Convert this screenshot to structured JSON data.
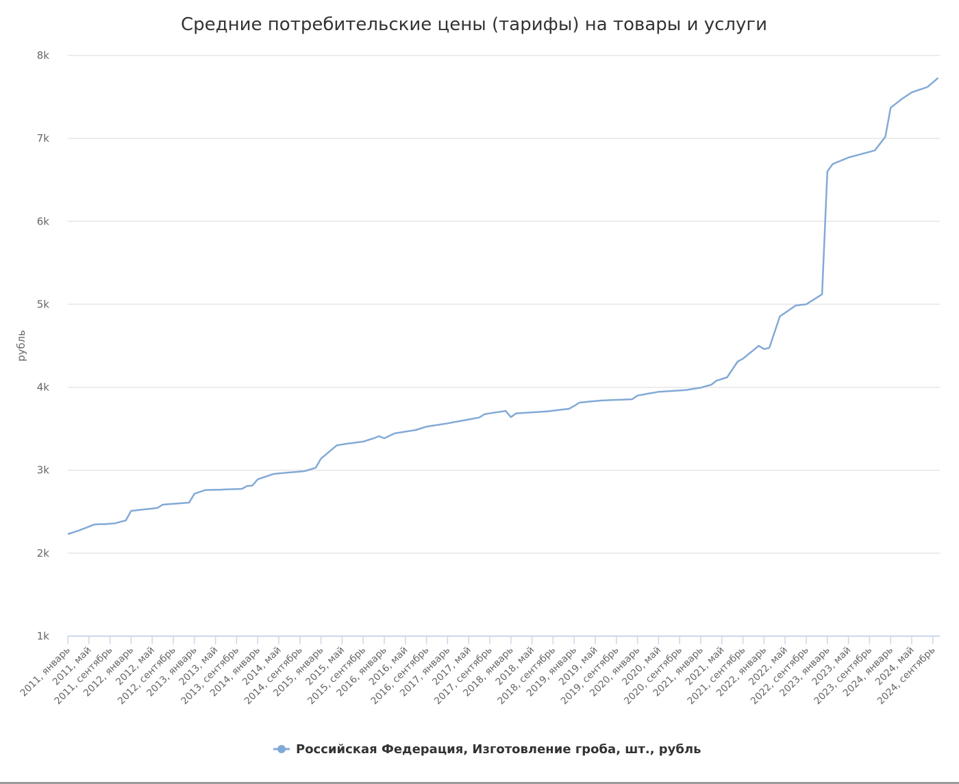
{
  "chart_data": {
    "type": "line",
    "title": "Средние потребительские цены (тарифы) на товары и услуги",
    "ylabel": "рубль",
    "xlabel": "",
    "ylim": [
      1000,
      8000
    ],
    "yticks": [
      1000,
      2000,
      3000,
      4000,
      5000,
      6000,
      7000,
      8000
    ],
    "ytick_labels": [
      "1k",
      "2k",
      "3k",
      "4k",
      "5k",
      "6k",
      "7k",
      "8k"
    ],
    "grid": true,
    "legend_position": "bottom",
    "line_color": "#82a9d6",
    "x_tick_labels": [
      "2011, январь",
      "2011, май",
      "2011, сентябрь",
      "2012, январь",
      "2012, май",
      "2012, сентябрь",
      "2013, январь",
      "2013, май",
      "2013, сентябрь",
      "2014, январь",
      "2014, май",
      "2014, сентябрь",
      "2015, январь",
      "2015, май",
      "2015, сентябрь",
      "2016, январь",
      "2016, май",
      "2016, сентябрь",
      "2017, январь",
      "2017, май",
      "2017, сентябрь",
      "2018, январь",
      "2018, май",
      "2018, сентябрь",
      "2019, январь",
      "2019, май",
      "2019, сентябрь",
      "2020, январь",
      "2020, май",
      "2020, сентябрь",
      "2021, январь",
      "2021, май",
      "2021, сентябрь",
      "2022, январь",
      "2022, май",
      "2022, сентябрь",
      "2023, январь",
      "2023, май",
      "2023, сентябрь",
      "2024, январь",
      "2024, май",
      "2024, сентябрь"
    ],
    "x_range": [
      "2011, январь",
      "2024, октябрь"
    ],
    "series": [
      {
        "name": "Российская Федерация, Изготовление гроба, шт., рубль",
        "values": [
          2230,
          2250,
          2270,
          2295,
          2320,
          2345,
          2350,
          2350,
          2355,
          2360,
          2378,
          2395,
          2510,
          2517,
          2524,
          2531,
          2538,
          2545,
          2585,
          2590,
          2595,
          2600,
          2605,
          2610,
          2715,
          2738,
          2760,
          2762,
          2764,
          2766,
          2769,
          2771,
          2773,
          2775,
          2810,
          2815,
          2890,
          2912,
          2933,
          2955,
          2961,
          2967,
          2973,
          2978,
          2984,
          2990,
          3010,
          3030,
          3140,
          3193,
          3247,
          3300,
          3310,
          3320,
          3328,
          3337,
          3345,
          3365,
          3385,
          3410,
          3385,
          3415,
          3445,
          3455,
          3465,
          3475,
          3485,
          3505,
          3525,
          3535,
          3545,
          3555,
          3565,
          3577,
          3588,
          3600,
          3612,
          3623,
          3635,
          3675,
          3685,
          3695,
          3705,
          3715,
          3640,
          3685,
          3689,
          3693,
          3698,
          3702,
          3706,
          3710,
          3718,
          3725,
          3733,
          3740,
          3775,
          3815,
          3821,
          3828,
          3834,
          3840,
          3843,
          3845,
          3848,
          3850,
          3853,
          3855,
          3900,
          3911,
          3923,
          3934,
          3945,
          3949,
          3953,
          3957,
          3961,
          3965,
          3975,
          3985,
          3995,
          4013,
          4030,
          4080,
          4100,
          4120,
          4215,
          4310,
          4345,
          4397,
          4448,
          4500,
          4460,
          4475,
          4665,
          4855,
          4898,
          4942,
          4985,
          4993,
          5000,
          5040,
          5080,
          5120,
          6600,
          6690,
          6717,
          6743,
          6770,
          6787,
          6804,
          6821,
          6838,
          6855,
          6938,
          7020,
          7370,
          7420,
          7470,
          7513,
          7555,
          7577,
          7598,
          7620,
          7675,
          7730
        ]
      }
    ]
  }
}
